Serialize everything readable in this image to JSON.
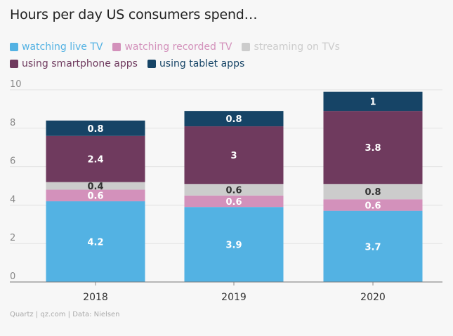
{
  "chart_data": {
    "type": "bar",
    "stacked": true,
    "title": "Hours per day US consumers spend…",
    "categories": [
      "2018",
      "2019",
      "2020"
    ],
    "series": [
      {
        "name": "watching live TV",
        "color": "#53b2e3",
        "label_color": "#ffffff",
        "values": [
          4.2,
          3.9,
          3.7
        ]
      },
      {
        "name": "watching recorded TV",
        "color": "#d391bb",
        "label_color": "#ffffff",
        "values": [
          0.6,
          0.6,
          0.6
        ]
      },
      {
        "name": "streaming on TVs",
        "color": "#cccccc",
        "label_color": "#333333",
        "values": [
          0.4,
          0.6,
          0.8
        ]
      },
      {
        "name": "using smartphone apps",
        "color": "#6f3a5e",
        "label_color": "#ffffff",
        "values": [
          2.4,
          3,
          3.8
        ]
      },
      {
        "name": "using tablet apps",
        "color": "#164466",
        "label_color": "#ffffff",
        "values": [
          0.8,
          0.8,
          1
        ]
      }
    ],
    "y_ticks": [
      "0",
      "2",
      "4",
      "6",
      "8",
      "10"
    ],
    "ylim": [
      0,
      10
    ],
    "grid": true,
    "legend_position": "top-left",
    "source": "Quartz | qz.com | Data: Nielsen"
  }
}
